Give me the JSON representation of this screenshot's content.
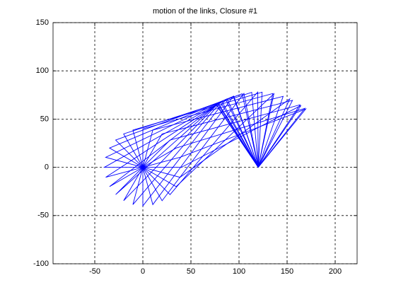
{
  "chart_data": {
    "type": "line",
    "title": "motion of the links, Closure #1",
    "color": "#0000ff",
    "xlim": [
      -93.4,
      222.8
    ],
    "ylim": [
      -100,
      150
    ],
    "xticks": [
      -50,
      0,
      50,
      100,
      150,
      200
    ],
    "yticks": [
      -100,
      -50,
      0,
      50,
      100,
      150
    ],
    "grid": true,
    "series": [
      {
        "x": [
          0,
          40,
          164.5,
          120
        ],
        "y": [
          0,
          0,
          64.1,
          0
        ]
      },
      {
        "x": [
          0,
          38.64,
          169.4,
          120
        ],
        "y": [
          0,
          10.35,
          60.4,
          0
        ]
      },
      {
        "x": [
          0,
          34.64,
          168.5,
          120
        ],
        "y": [
          0,
          20,
          61.1,
          0
        ]
      },
      {
        "x": [
          0,
          28.28,
          163.4,
          120
        ],
        "y": [
          0,
          28.28,
          64.8,
          0
        ]
      },
      {
        "x": [
          0,
          20,
          155.6,
          120
        ],
        "y": [
          0,
          34.64,
          69.4,
          0
        ]
      },
      {
        "x": [
          0,
          10.35,
          145.9,
          120
        ],
        "y": [
          0,
          38.64,
          73.6,
          0
        ]
      },
      {
        "x": [
          0,
          0,
          135.2,
          120
        ],
        "y": [
          0,
          40,
          76.5,
          0
        ]
      },
      {
        "x": [
          0,
          -10.35,
          124.0,
          120
        ],
        "y": [
          0,
          38.64,
          77.9,
          0
        ]
      },
      {
        "x": [
          0,
          -20,
          113.2,
          120
        ],
        "y": [
          0,
          34.64,
          77.7,
          0
        ]
      },
      {
        "x": [
          0,
          -28.28,
          103.3,
          120
        ],
        "y": [
          0,
          28.28,
          76.2,
          0
        ]
      },
      {
        "x": [
          0,
          -34.64,
          94.6,
          120
        ],
        "y": [
          0,
          20,
          73.8,
          0
        ]
      },
      {
        "x": [
          0,
          -38.64,
          87.6,
          120
        ],
        "y": [
          0,
          10.35,
          71.0,
          0
        ]
      },
      {
        "x": [
          0,
          -40,
          82.2,
          120
        ],
        "y": [
          0,
          0,
          68.3,
          0
        ]
      },
      {
        "x": [
          0,
          -38.64,
          78.6,
          120
        ],
        "y": [
          0,
          -10.35,
          66.1,
          0
        ]
      },
      {
        "x": [
          0,
          -34.64,
          76.7,
          120
        ],
        "y": [
          0,
          -20,
          64.9,
          0
        ]
      },
      {
        "x": [
          0,
          -28.28,
          76.4,
          120
        ],
        "y": [
          0,
          -28.28,
          64.7,
          0
        ]
      },
      {
        "x": [
          0,
          -20,
          77.8,
          120
        ],
        "y": [
          0,
          -34.64,
          65.6,
          0
        ]
      },
      {
        "x": [
          0,
          -10.35,
          80.9,
          120
        ],
        "y": [
          0,
          -38.64,
          67.5,
          0
        ]
      },
      {
        "x": [
          0,
          0,
          86.2,
          120
        ],
        "y": [
          0,
          -40,
          70.3,
          0
        ]
      },
      {
        "x": [
          0,
          10.35,
          94.1,
          120
        ],
        "y": [
          0,
          -38.64,
          73.6,
          0
        ]
      },
      {
        "x": [
          0,
          20,
          105.1,
          120
        ],
        "y": [
          0,
          -34.64,
          76.6,
          0
        ]
      },
      {
        "x": [
          0,
          28.28,
          119.4,
          120
        ],
        "y": [
          0,
          -28.28,
          78.0,
          0
        ]
      },
      {
        "x": [
          0,
          34.64,
          136.3,
          120
        ],
        "y": [
          0,
          -20,
          76.3,
          0
        ]
      },
      {
        "x": [
          0,
          38.64,
          152.7,
          120
        ],
        "y": [
          0,
          -10.35,
          70.8,
          0
        ]
      }
    ]
  }
}
